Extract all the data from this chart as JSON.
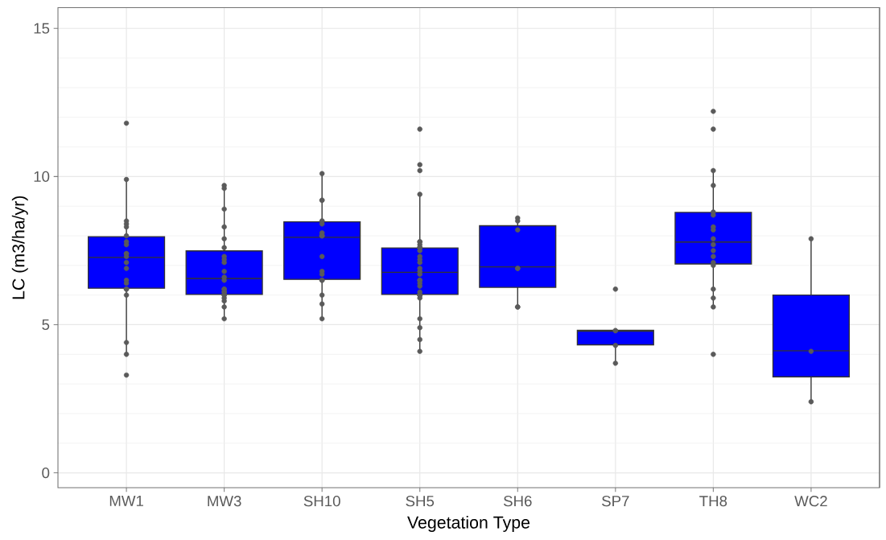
{
  "chart_data": {
    "type": "box",
    "xlabel": "Vegetation Type",
    "ylabel": "LC (m3/ha/yr)",
    "categories": [
      "MW1",
      "MW3",
      "SH10",
      "SH5",
      "SH6",
      "SP7",
      "TH8",
      "WC2"
    ],
    "color": "#0000ff",
    "boxes": [
      {
        "low": 3.97,
        "q1": 6.23,
        "median": 7.27,
        "q3": 7.97,
        "high": 9.91
      },
      {
        "low": 5.17,
        "q1": 6.02,
        "median": 6.56,
        "q3": 7.49,
        "high": 9.65
      },
      {
        "low": 5.17,
        "q1": 6.53,
        "median": 7.95,
        "q3": 8.47,
        "high": 10.09
      },
      {
        "low": 4.12,
        "q1": 6.02,
        "median": 6.77,
        "q3": 7.59,
        "high": 9.35
      },
      {
        "low": 5.64,
        "q1": 6.26,
        "median": 6.95,
        "q3": 8.34,
        "high": 8.62
      },
      {
        "low": 3.72,
        "q1": 4.32,
        "median": 4.78,
        "q3": 4.81,
        "high": 4.81
      },
      {
        "low": 5.66,
        "q1": 7.05,
        "median": 7.79,
        "q3": 8.79,
        "high": 10.14
      },
      {
        "low": 2.36,
        "q1": 3.24,
        "median": 4.12,
        "q3": 6.0,
        "high": 7.87
      }
    ],
    "series": [
      {
        "type": "scatter",
        "color": "#5a5a5a",
        "x": [
          "MW1",
          "MW1",
          "MW1",
          "MW1",
          "MW1",
          "MW1",
          "MW1",
          "MW1",
          "MW1",
          "MW1",
          "MW1",
          "MW1",
          "MW1",
          "MW1",
          "MW1",
          "MW1",
          "MW1",
          "MW1",
          "MW1",
          "MW1",
          "MW1",
          "MW3",
          "MW3",
          "MW3",
          "MW3",
          "MW3",
          "MW3",
          "MW3",
          "MW3",
          "MW3",
          "MW3",
          "MW3",
          "MW3",
          "MW3",
          "MW3",
          "MW3",
          "MW3",
          "MW3",
          "MW3",
          "MW3",
          "MW3",
          "MW3",
          "MW3",
          "SH10",
          "SH10",
          "SH10",
          "SH10",
          "SH10",
          "SH10",
          "SH10",
          "SH10",
          "SH10",
          "SH10",
          "SH10",
          "SH10",
          "SH10",
          "SH10",
          "SH10",
          "SH10",
          "SH10",
          "SH10",
          "SH5",
          "SH5",
          "SH5",
          "SH5",
          "SH5",
          "SH5",
          "SH5",
          "SH5",
          "SH5",
          "SH5",
          "SH5",
          "SH5",
          "SH5",
          "SH5",
          "SH5",
          "SH5",
          "SH5",
          "SH5",
          "SH5",
          "SH5",
          "SH5",
          "SH5",
          "SH5",
          "SH5",
          "SH5",
          "SH5",
          "SH5",
          "SH5",
          "SH5",
          "SH5",
          "SH5",
          "SH6",
          "SH6",
          "SH6",
          "SH6",
          "SH6",
          "SH6",
          "SH6",
          "SP7",
          "SP7",
          "SP7",
          "SP7",
          "SP7",
          "TH8",
          "TH8",
          "TH8",
          "TH8",
          "TH8",
          "TH8",
          "TH8",
          "TH8",
          "TH8",
          "TH8",
          "TH8",
          "TH8",
          "TH8",
          "TH8",
          "TH8",
          "TH8",
          "TH8",
          "TH8",
          "WC2",
          "WC2",
          "WC2"
        ],
        "values": [
          11.8,
          9.9,
          8.5,
          8.4,
          8.3,
          8.0,
          7.8,
          7.7,
          7.4,
          7.4,
          7.3,
          7.1,
          6.9,
          6.5,
          6.4,
          6.2,
          6.2,
          6.0,
          4.4,
          4.0,
          3.3,
          9.7,
          9.6,
          8.9,
          8.3,
          7.9,
          7.6,
          7.3,
          7.2,
          7.1,
          6.8,
          6.6,
          6.5,
          6.2,
          6.2,
          6.1,
          6.1,
          6.0,
          6.0,
          5.9,
          5.8,
          5.6,
          5.2,
          10.1,
          9.2,
          9.2,
          8.5,
          8.5,
          8.4,
          8.1,
          8.0,
          8.0,
          8.0,
          7.3,
          6.8,
          6.7,
          6.5,
          6.5,
          6.0,
          5.7,
          5.2,
          11.6,
          10.4,
          10.2,
          9.4,
          7.8,
          7.8,
          7.7,
          7.6,
          7.6,
          7.6,
          7.5,
          7.3,
          7.2,
          7.1,
          6.9,
          6.8,
          6.7,
          6.5,
          6.5,
          6.4,
          6.3,
          6.1,
          6.0,
          6.0,
          6.0,
          6.0,
          5.9,
          5.2,
          4.9,
          4.5,
          4.1,
          8.6,
          8.5,
          8.2,
          6.9,
          6.9,
          5.6,
          5.6,
          6.2,
          4.8,
          4.8,
          4.3,
          3.7,
          12.2,
          11.6,
          10.2,
          9.7,
          8.8,
          8.7,
          8.3,
          8.2,
          7.9,
          7.7,
          7.5,
          7.3,
          7.1,
          7.0,
          6.2,
          5.9,
          5.6,
          4.0,
          7.9,
          4.1,
          2.4
        ]
      }
    ],
    "ylim": [
      -0.5,
      15.7
    ],
    "yticks": [
      0,
      5,
      10,
      15
    ],
    "grid": true
  }
}
